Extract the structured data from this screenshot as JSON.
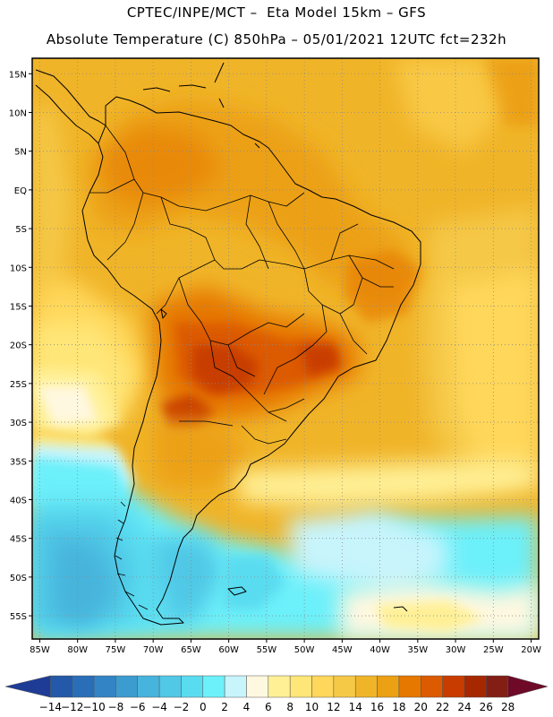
{
  "header": {
    "line1": "CPTEC/INPE/MCT –  Eta Model 15km – GFS",
    "line2": "Absolute Temperature (C) 850hPa – 05/01/2021 12UTC fct=232h"
  },
  "axes": {
    "lat_labels": [
      "15N",
      "10N",
      "5N",
      "EQ",
      "5S",
      "10S",
      "15S",
      "20S",
      "25S",
      "30S",
      "35S",
      "40S",
      "45S",
      "50S",
      "55S"
    ],
    "lon_labels": [
      "85W",
      "80W",
      "75W",
      "70W",
      "65W",
      "60W",
      "55W",
      "50W",
      "45W",
      "40W",
      "35W",
      "30W",
      "25W",
      "20W"
    ]
  },
  "colorbar": {
    "labels": [
      "-14",
      "-12",
      "-10",
      "-8",
      "-6",
      "-4",
      "-2",
      "0",
      "2",
      "4",
      "6",
      "8",
      "10",
      "12",
      "14",
      "16",
      "18",
      "20",
      "22",
      "24",
      "26",
      "28"
    ],
    "colors": [
      "#1e3c96",
      "#2458a8",
      "#2a6eb8",
      "#3284c4",
      "#3c9cd0",
      "#46b4dc",
      "#50c8e6",
      "#5adcf0",
      "#6cf0fa",
      "#c8f4fc",
      "#fff8e0",
      "#fff096",
      "#ffe678",
      "#ffd75a",
      "#f5c846",
      "#f0b428",
      "#eca014",
      "#e67800",
      "#dc5a00",
      "#c83c00",
      "#a52800",
      "#821e14",
      "#6e0a28"
    ]
  },
  "map": {
    "lat_range": [
      -58,
      17
    ],
    "lon_range": [
      -86,
      -19
    ]
  }
}
